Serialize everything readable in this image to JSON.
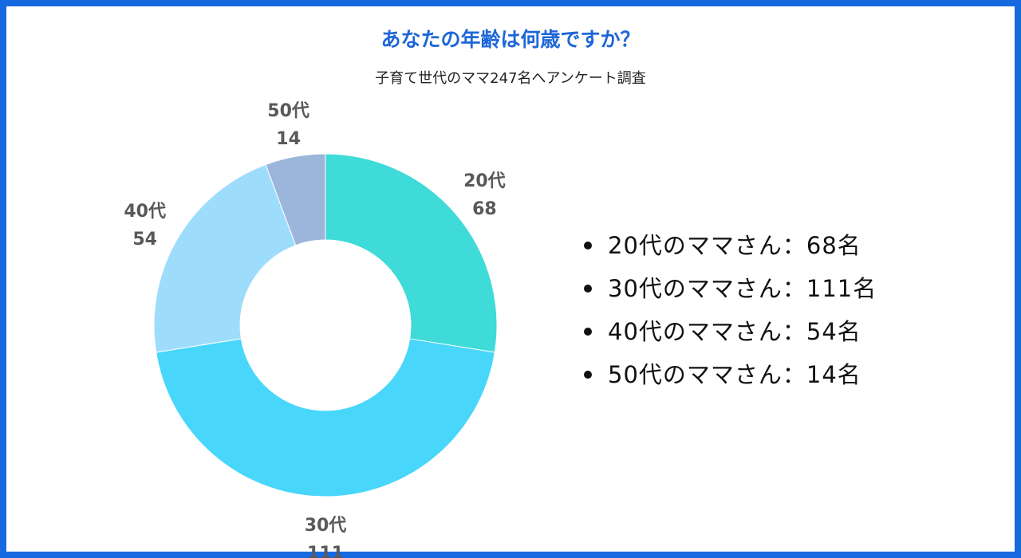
{
  "chart_data": {
    "type": "pie",
    "title": "あなたの年齢は何歳ですか？",
    "subtitle": "子育て世代のママ247名へアンケート調査",
    "categories": [
      "20代",
      "30代",
      "40代",
      "50代"
    ],
    "values": [
      68,
      111,
      54,
      14
    ],
    "colors": [
      "#3fdbd8",
      "#48d6fb",
      "#9edcfc",
      "#9cb6db"
    ],
    "label_color": "#595959"
  },
  "legend": {
    "items": [
      "20代のママさん：68名",
      "30代のママさん：111名",
      "40代のママさん：54名",
      "50代のママさん：14名"
    ]
  },
  "colors": {
    "border": "#1769e0",
    "title": "#1d66d8"
  }
}
